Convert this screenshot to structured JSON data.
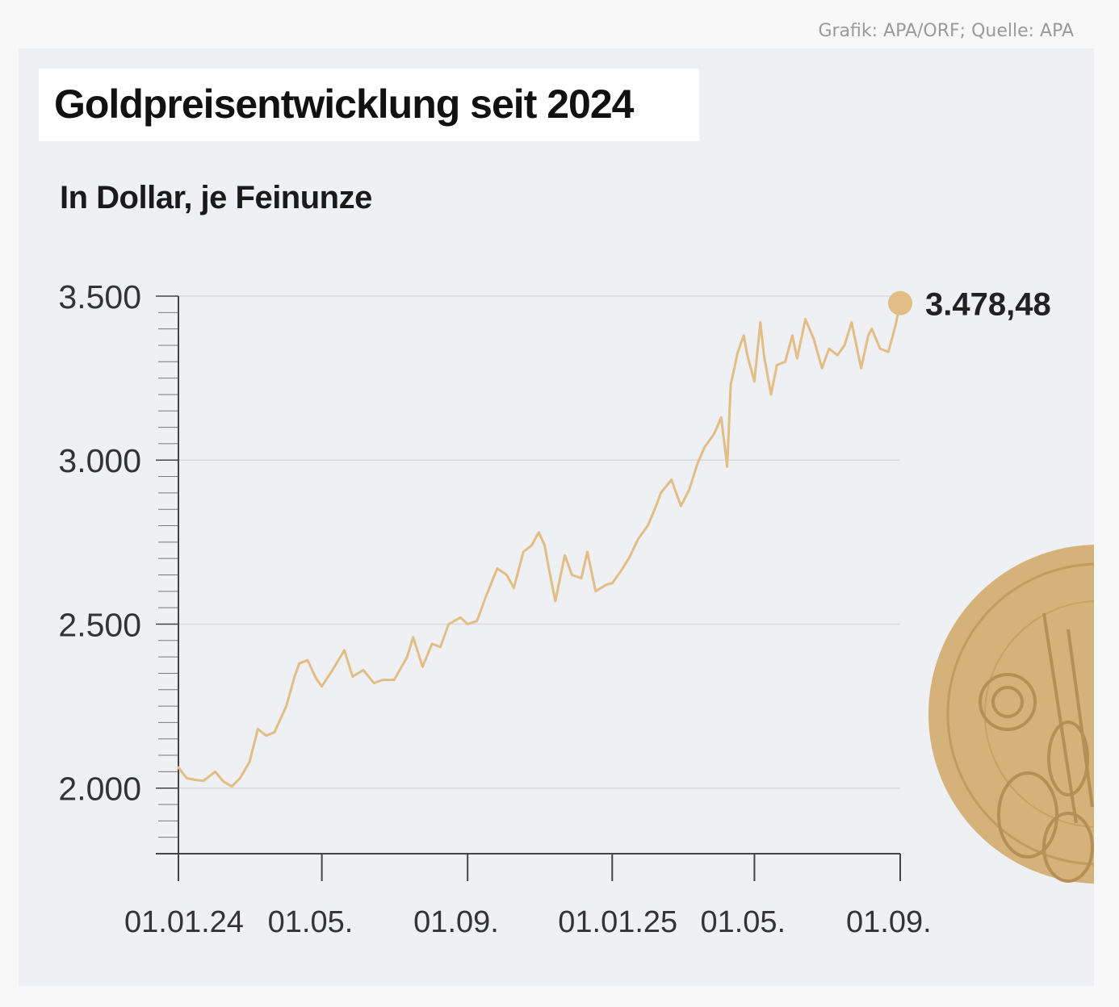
{
  "credit": "Grafik: APA/ORF; Quelle: APA",
  "colors": {
    "line": "#e2bd85",
    "coin": "#d4b27a",
    "grid": "#d9d9dd",
    "axis": "#444444"
  },
  "chart_data": {
    "type": "line",
    "title": "Goldpreisentwicklung seit 2024",
    "subtitle": "In Dollar, je Feinunze",
    "ylim": [
      1800,
      3500
    ],
    "y_ticks": [
      2000,
      2500,
      3000,
      3500
    ],
    "y_tick_labels": [
      "2.000",
      "2.500",
      "3.000",
      "3.500"
    ],
    "x_ticks": [
      "2024-01-01",
      "2024-05-01",
      "2024-09-01",
      "2025-01-01",
      "2025-05-01",
      "2025-09-01"
    ],
    "x_tick_labels": [
      "01.01.24",
      "01.05.",
      "01.09.",
      "01.01.25",
      "01.05.",
      "01.09."
    ],
    "grid": true,
    "end_label": "3.478,48",
    "series": [
      {
        "values": [
          [
            "2024-01-01",
            2063
          ],
          [
            "2024-01-08",
            2030
          ],
          [
            "2024-01-15",
            2025
          ],
          [
            "2024-01-22",
            2022
          ],
          [
            "2024-02-01",
            2050
          ],
          [
            "2024-02-08",
            2020
          ],
          [
            "2024-02-15",
            2005
          ],
          [
            "2024-02-22",
            2030
          ],
          [
            "2024-03-01",
            2080
          ],
          [
            "2024-03-08",
            2180
          ],
          [
            "2024-03-15",
            2160
          ],
          [
            "2024-03-22",
            2170
          ],
          [
            "2024-04-01",
            2250
          ],
          [
            "2024-04-08",
            2340
          ],
          [
            "2024-04-12",
            2380
          ],
          [
            "2024-04-19",
            2390
          ],
          [
            "2024-04-26",
            2335
          ],
          [
            "2024-05-01",
            2310
          ],
          [
            "2024-05-10",
            2360
          ],
          [
            "2024-05-20",
            2420
          ],
          [
            "2024-05-27",
            2340
          ],
          [
            "2024-06-05",
            2360
          ],
          [
            "2024-06-14",
            2320
          ],
          [
            "2024-06-21",
            2330
          ],
          [
            "2024-07-01",
            2330
          ],
          [
            "2024-07-12",
            2400
          ],
          [
            "2024-07-17",
            2460
          ],
          [
            "2024-07-25",
            2370
          ],
          [
            "2024-08-02",
            2440
          ],
          [
            "2024-08-09",
            2430
          ],
          [
            "2024-08-16",
            2500
          ],
          [
            "2024-08-26",
            2520
          ],
          [
            "2024-09-01",
            2500
          ],
          [
            "2024-09-09",
            2510
          ],
          [
            "2024-09-16",
            2580
          ],
          [
            "2024-09-26",
            2670
          ],
          [
            "2024-10-04",
            2650
          ],
          [
            "2024-10-10",
            2610
          ],
          [
            "2024-10-18",
            2720
          ],
          [
            "2024-10-25",
            2740
          ],
          [
            "2024-10-31",
            2780
          ],
          [
            "2024-11-05",
            2740
          ],
          [
            "2024-11-08",
            2680
          ],
          [
            "2024-11-14",
            2570
          ],
          [
            "2024-11-22",
            2710
          ],
          [
            "2024-11-28",
            2650
          ],
          [
            "2024-12-06",
            2640
          ],
          [
            "2024-12-11",
            2720
          ],
          [
            "2024-12-18",
            2600
          ],
          [
            "2024-12-27",
            2620
          ],
          [
            "2025-01-01",
            2625
          ],
          [
            "2025-01-08",
            2660
          ],
          [
            "2025-01-15",
            2700
          ],
          [
            "2025-01-23",
            2760
          ],
          [
            "2025-01-31",
            2800
          ],
          [
            "2025-02-07",
            2860
          ],
          [
            "2025-02-11",
            2900
          ],
          [
            "2025-02-20",
            2940
          ],
          [
            "2025-02-28",
            2860
          ],
          [
            "2025-03-07",
            2910
          ],
          [
            "2025-03-14",
            2990
          ],
          [
            "2025-03-20",
            3040
          ],
          [
            "2025-03-28",
            3080
          ],
          [
            "2025-04-03",
            3130
          ],
          [
            "2025-04-08",
            2980
          ],
          [
            "2025-04-11",
            3230
          ],
          [
            "2025-04-17",
            3330
          ],
          [
            "2025-04-22",
            3380
          ],
          [
            "2025-04-25",
            3320
          ],
          [
            "2025-05-01",
            3240
          ],
          [
            "2025-05-06",
            3420
          ],
          [
            "2025-05-09",
            3320
          ],
          [
            "2025-05-15",
            3200
          ],
          [
            "2025-05-20",
            3290
          ],
          [
            "2025-05-27",
            3300
          ],
          [
            "2025-06-02",
            3380
          ],
          [
            "2025-06-06",
            3310
          ],
          [
            "2025-06-13",
            3430
          ],
          [
            "2025-06-20",
            3370
          ],
          [
            "2025-06-27",
            3280
          ],
          [
            "2025-07-03",
            3340
          ],
          [
            "2025-07-10",
            3320
          ],
          [
            "2025-07-16",
            3350
          ],
          [
            "2025-07-22",
            3420
          ],
          [
            "2025-07-30",
            3280
          ],
          [
            "2025-08-05",
            3380
          ],
          [
            "2025-08-08",
            3400
          ],
          [
            "2025-08-15",
            3340
          ],
          [
            "2025-08-22",
            3330
          ],
          [
            "2025-08-28",
            3410
          ],
          [
            "2025-09-01",
            3478.48
          ]
        ]
      }
    ]
  }
}
